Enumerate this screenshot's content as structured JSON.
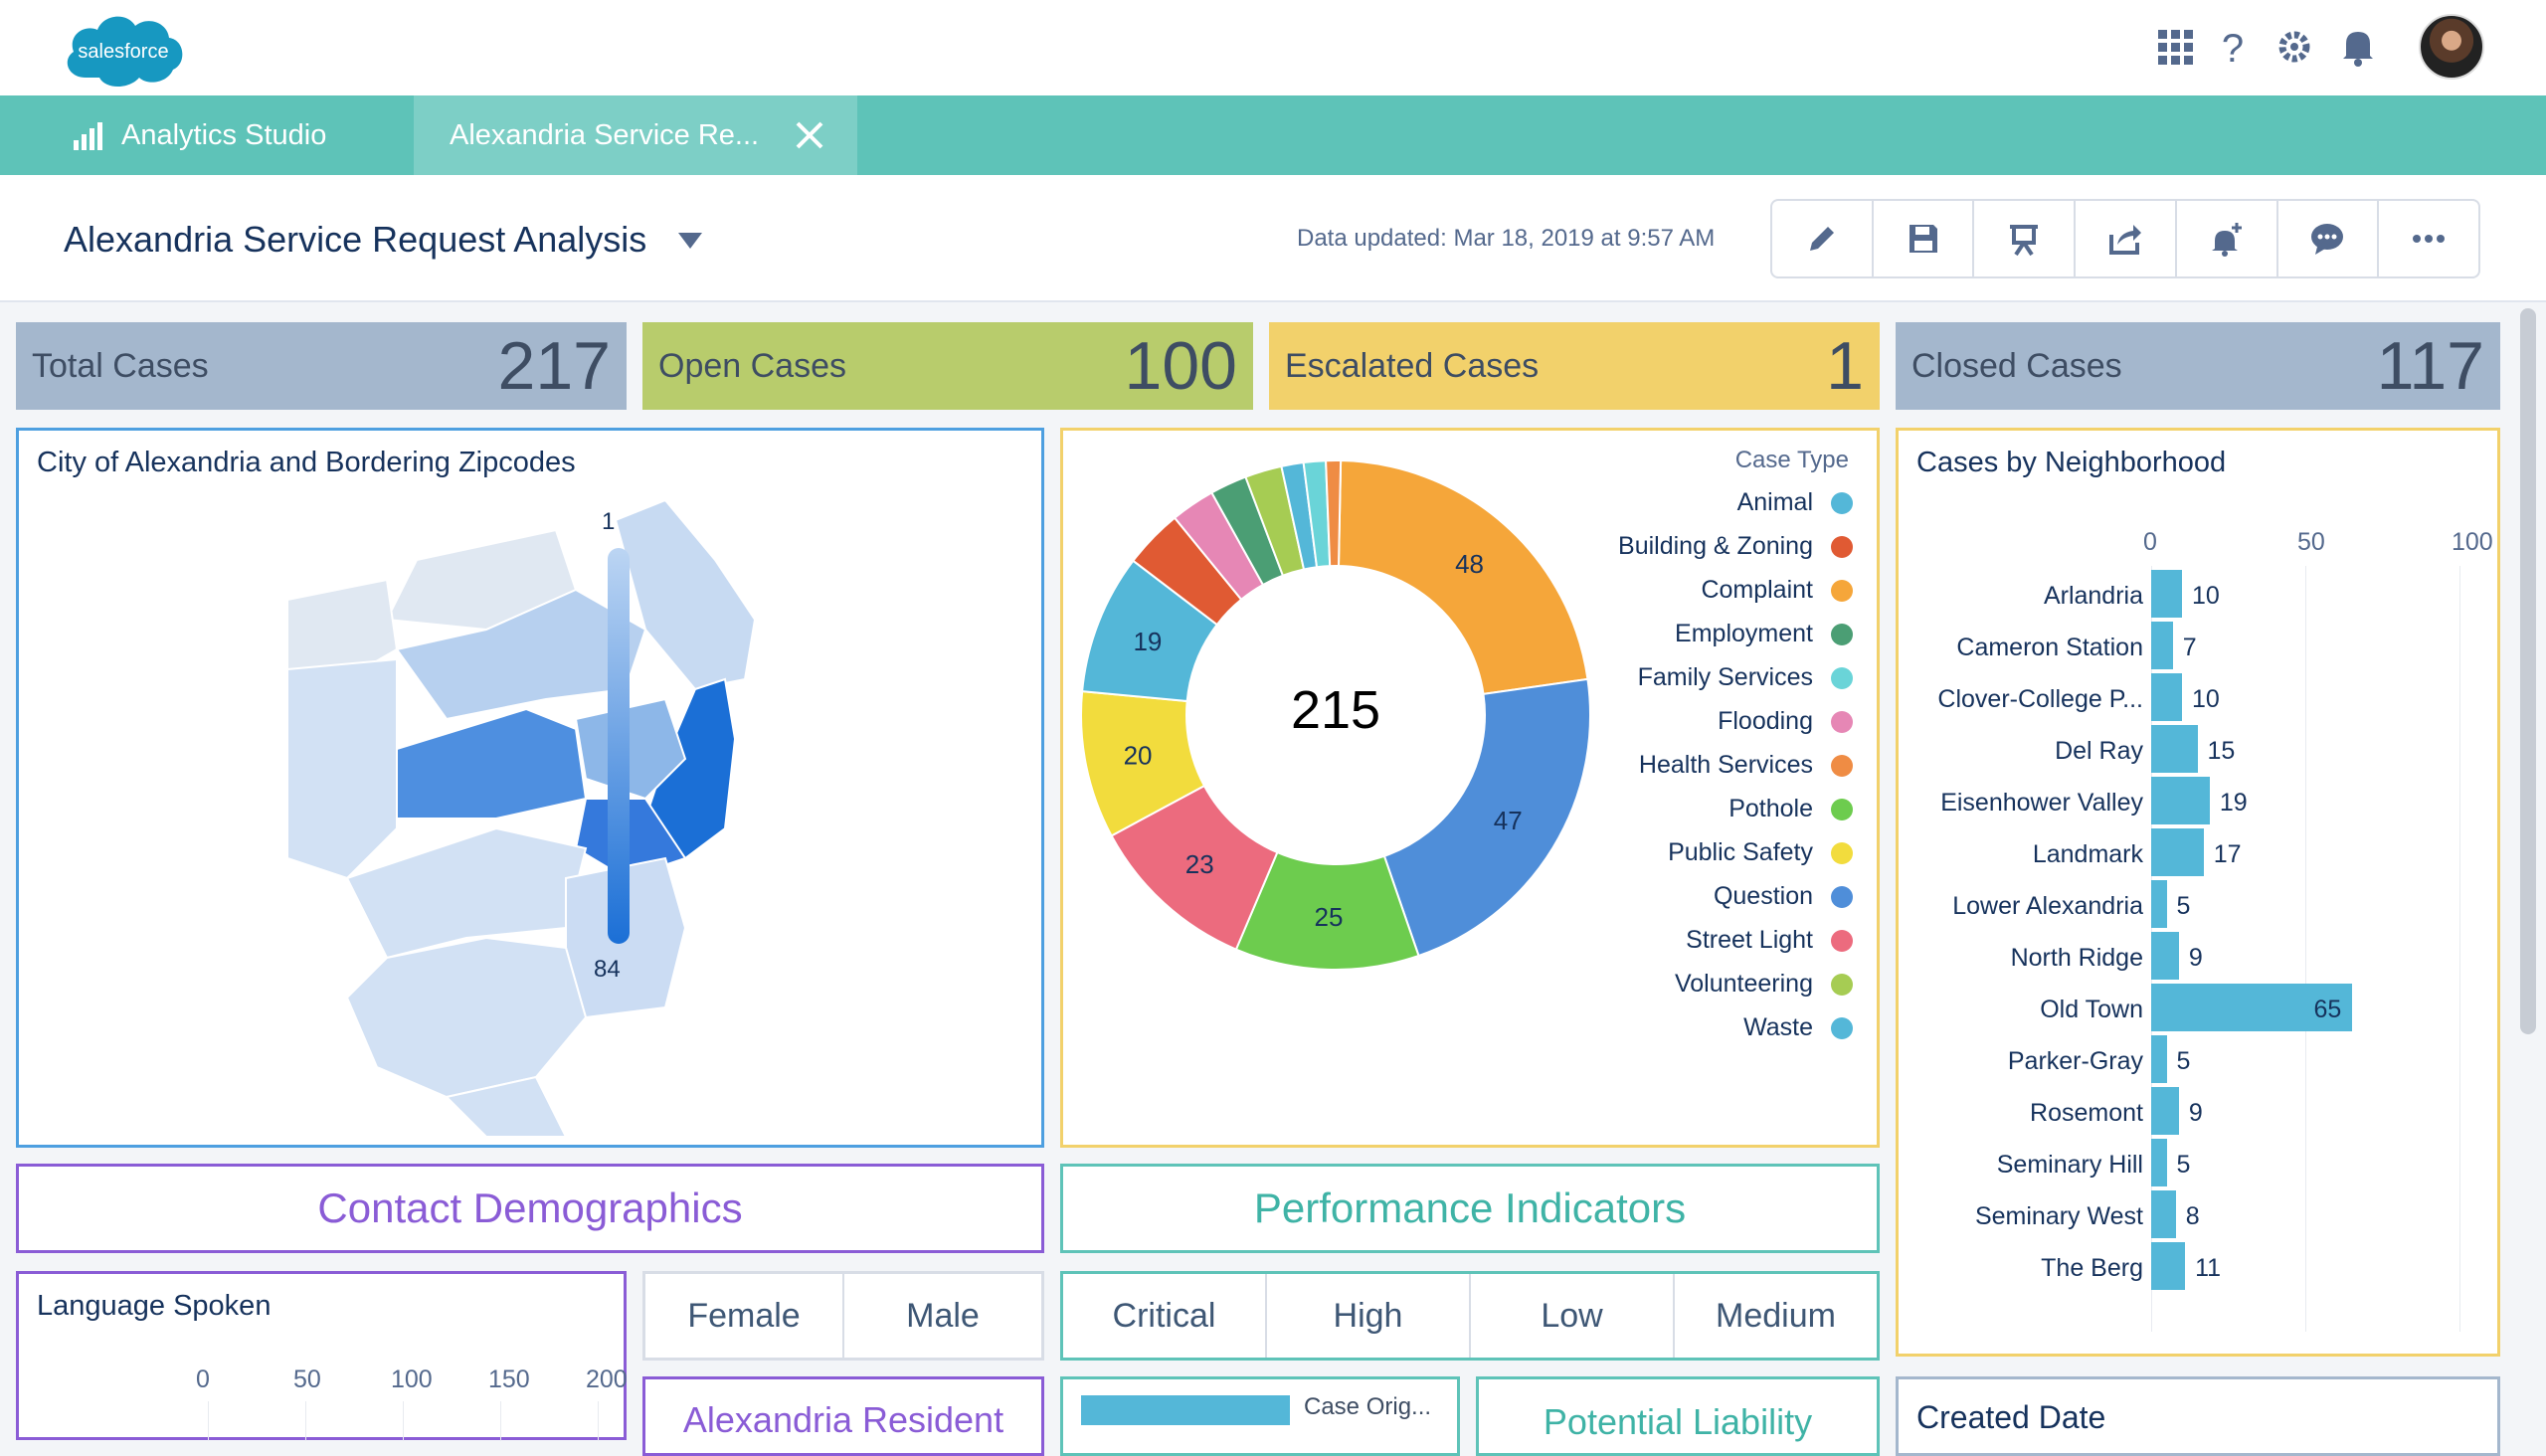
{
  "app": {
    "logo_text": "salesforce"
  },
  "tabs": [
    {
      "label": "Analytics Studio"
    },
    {
      "label": "Alexandria Service Re..."
    }
  ],
  "dashboard": {
    "title": "Alexandria Service Request Analysis",
    "updated": "Data updated: Mar 18, 2019 at 9:57 AM",
    "toolbar": [
      "edit-icon",
      "save-icon",
      "present-icon",
      "share-icon",
      "notify-icon",
      "comment-icon",
      "more-icon"
    ]
  },
  "kpis": [
    {
      "label": "Total Cases",
      "value": "217",
      "color": "#a4b7cd"
    },
    {
      "label": "Open Cases",
      "value": "100",
      "color": "#b8cc6c"
    },
    {
      "label": "Escalated Cases",
      "value": "1",
      "color": "#f2d16b"
    },
    {
      "label": "Closed Cases",
      "value": "117",
      "color": "#a4b7cd"
    }
  ],
  "map": {
    "title": "City of Alexandria and Bordering Zipcodes",
    "legend_max": "1",
    "legend_min": "84"
  },
  "donut": {
    "center": "215",
    "legend_title": "Case Type",
    "legend": [
      {
        "name": "Animal",
        "color": "#54b7d8"
      },
      {
        "name": "Building & Zoning",
        "color": "#e05a33"
      },
      {
        "name": "Complaint",
        "color": "#f5a63a"
      },
      {
        "name": "Employment",
        "color": "#4b9e74"
      },
      {
        "name": "Family Services",
        "color": "#6ad4d8"
      },
      {
        "name": "Flooding",
        "color": "#e687b5"
      },
      {
        "name": "Health Services",
        "color": "#ef8c44"
      },
      {
        "name": "Pothole",
        "color": "#6dcc4e"
      },
      {
        "name": "Public Safety",
        "color": "#f2dc3d"
      },
      {
        "name": "Question",
        "color": "#4f8ed9"
      },
      {
        "name": "Street Light",
        "color": "#ec6b7e"
      },
      {
        "name": "Volunteering",
        "color": "#a6cc53"
      },
      {
        "name": "Waste",
        "color": "#54b7d8"
      }
    ]
  },
  "chart_data": [
    {
      "type": "pie",
      "title": "",
      "legend_title": "Case Type",
      "segments": [
        {
          "name": "Complaint",
          "value": 48,
          "color": "#f5a63a"
        },
        {
          "name": "Question",
          "value": 47,
          "color": "#4f8ed9"
        },
        {
          "name": "Pothole",
          "value": 25,
          "color": "#6dcc4e"
        },
        {
          "name": "Street Light",
          "value": 23,
          "color": "#ec6b7e"
        },
        {
          "name": "Public Safety",
          "value": 20,
          "color": "#f2dc3d"
        },
        {
          "name": "Animal",
          "value": 19,
          "color": "#54b7d8"
        },
        {
          "name": "Building & Zoning",
          "value": 8,
          "color": "#e05a33"
        },
        {
          "name": "Flooding",
          "value": 6,
          "color": "#e687b5"
        },
        {
          "name": "Employment",
          "value": 5,
          "color": "#4b9e74"
        },
        {
          "name": "Volunteering",
          "value": 5,
          "color": "#a6cc53"
        },
        {
          "name": "Waste",
          "value": 3,
          "color": "#54b7d8"
        },
        {
          "name": "Family Services",
          "value": 3,
          "color": "#6ad4d8"
        },
        {
          "name": "Health Services",
          "value": 2,
          "color": "#ef8c44"
        }
      ],
      "center_value": "215"
    },
    {
      "type": "bar",
      "title": "Cases by Neighborhood",
      "orientation": "horizontal",
      "categories": [
        "Arlandria",
        "Cameron Station",
        "Clover-College P...",
        "Del Ray",
        "Eisenhower Valley",
        "Landmark",
        "Lower Alexandria",
        "North Ridge",
        "Old Town",
        "Parker-Gray",
        "Rosemont",
        "Seminary Hill",
        "Seminary West",
        "The Berg"
      ],
      "values": [
        10,
        7,
        10,
        15,
        19,
        17,
        5,
        9,
        65,
        5,
        9,
        5,
        8,
        11
      ],
      "xticks": [
        "0",
        "50",
        "100"
      ],
      "xlim": [
        0,
        100
      ]
    },
    {
      "type": "bar",
      "title": "Language Spoken",
      "orientation": "horizontal",
      "xticks": [
        "0",
        "50",
        "100",
        "150",
        "200"
      ],
      "xlim": [
        0,
        200
      ]
    }
  ],
  "sections": {
    "contact": "Contact Demographics",
    "performance": "Performance Indicators"
  },
  "language": {
    "title": "Language Spoken"
  },
  "gender": [
    "Female",
    "Male"
  ],
  "priority": [
    "Critical",
    "High",
    "Low",
    "Medium"
  ],
  "bottom": {
    "resident": "Alexandria Resident",
    "case_origin": "Case Orig...",
    "liability": "Potential Liability",
    "created": "Created Date"
  }
}
